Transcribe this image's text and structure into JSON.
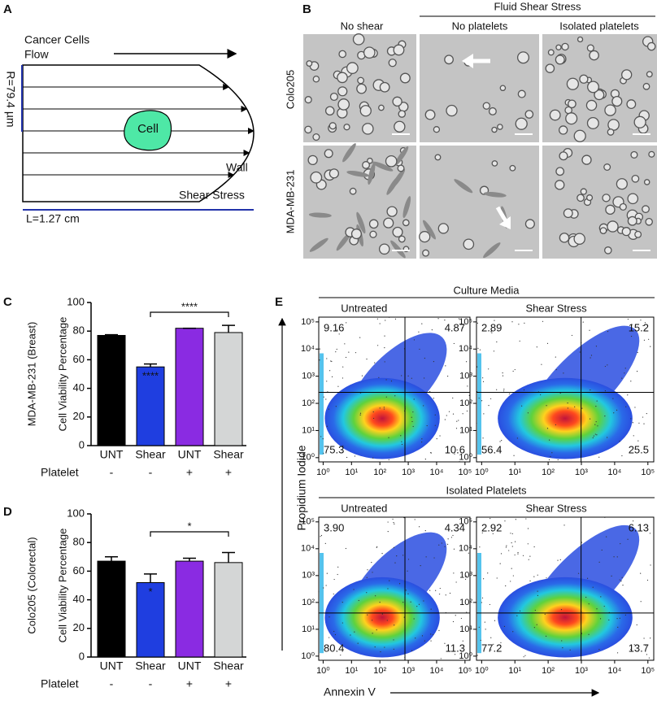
{
  "panel_labels": [
    "A",
    "B",
    "C",
    "D",
    "E"
  ],
  "panel_a": {
    "title_lines": [
      "Cancer Cells",
      "Flow"
    ],
    "radius_label": "R=79.4 µm",
    "cell_label": "Cell",
    "wall_lines": [
      "Wall",
      "Shear Stress"
    ],
    "length_label": "L=1.27 cm"
  },
  "panel_b": {
    "group_header": "Fluid Shear Stress",
    "columns": [
      "No shear",
      "No platelets",
      "Isolated platelets"
    ],
    "rows": [
      "Colo205",
      "MDA-MB-231"
    ]
  },
  "chart_data": [
    {
      "type": "bar",
      "y_label": "Cell Viability Percentage",
      "side_label": "MDA-MB-231 (Breast)",
      "categories": [
        "UNT",
        "Shear",
        "UNT",
        "Shear"
      ],
      "values": [
        77,
        55,
        82,
        79
      ],
      "errors": [
        0.5,
        2,
        0,
        5
      ],
      "colors": [
        "#000000",
        "#1f3ee0",
        "#8a2be2",
        "#d4d6d6"
      ],
      "ylim": [
        0,
        100
      ],
      "yticks": [
        0,
        20,
        40,
        60,
        80,
        100
      ],
      "bar_labels": [
        null,
        "****",
        null,
        null
      ],
      "bracket_label": "****",
      "row_label": "Platelet",
      "row_values": [
        "-",
        "-",
        "+",
        "+"
      ]
    },
    {
      "type": "bar",
      "y_label": "Cell Viability Percentage",
      "side_label": "Colo205 (Colorectal)",
      "categories": [
        "UNT",
        "Shear",
        "UNT",
        "Shear"
      ],
      "values": [
        67,
        52,
        67,
        66
      ],
      "errors": [
        3,
        6,
        2,
        7
      ],
      "colors": [
        "#000000",
        "#1f3ee0",
        "#8a2be2",
        "#d4d6d6"
      ],
      "ylim": [
        0,
        100
      ],
      "yticks": [
        0,
        20,
        40,
        60,
        80,
        100
      ],
      "bar_labels": [
        null,
        "*",
        null,
        null
      ],
      "bracket_label": "*",
      "row_label": "Platelet",
      "row_values": [
        "-",
        "-",
        "+",
        "+"
      ]
    }
  ],
  "panel_e": {
    "x_label": "Annexin V",
    "y_label": "Propidium Iodide",
    "log_scale": true,
    "xlim": [
      0.7,
      150000
    ],
    "ylim": [
      0.7,
      150000
    ],
    "ticks": [
      {
        "value": 1,
        "label": "10⁰"
      },
      {
        "value": 10,
        "label": "10¹"
      },
      {
        "value": 100,
        "label": "10²"
      },
      {
        "value": 1000,
        "label": "10³"
      },
      {
        "value": 10000,
        "label": "10⁴"
      },
      {
        "value": 100000,
        "label": "10⁵"
      }
    ],
    "groups": [
      {
        "title": "Culture Media",
        "plots": [
          {
            "title": "Untreated",
            "quadrants": [
              "9.16",
              "4.87",
              "75.3",
              "10.6"
            ]
          },
          {
            "title": "Shear Stress",
            "quadrants": [
              "2.89",
              "15.2",
              "56.4",
              "25.5"
            ]
          }
        ]
      },
      {
        "title": "Isolated Platelets",
        "plots": [
          {
            "title": "Untreated",
            "quadrants": [
              "3.90",
              "4.34",
              "80.4",
              "11.3"
            ]
          },
          {
            "title": "Shear Stress",
            "quadrants": [
              "2.92",
              "6.13",
              "77.2",
              "13.7"
            ]
          }
        ]
      }
    ]
  }
}
